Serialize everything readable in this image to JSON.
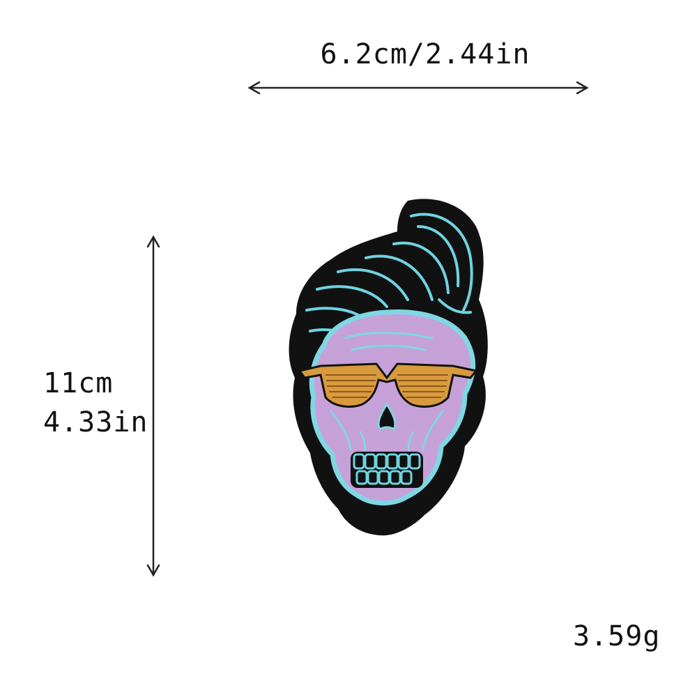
{
  "dimensions": {
    "width_text": "6.2cm/2.44in",
    "height_cm_text": "11cm",
    "height_in_text": "4.33in",
    "weight_text": "3.59g"
  },
  "product": {
    "subject": "embroidered skull patch with quiff hair and sunglasses",
    "colors": {
      "border": "#111111",
      "hair": "#6fd3e0",
      "skull": "#c6a1d8",
      "skull_outline": "#7fd7e3",
      "glasses": "#d89a3c"
    }
  }
}
